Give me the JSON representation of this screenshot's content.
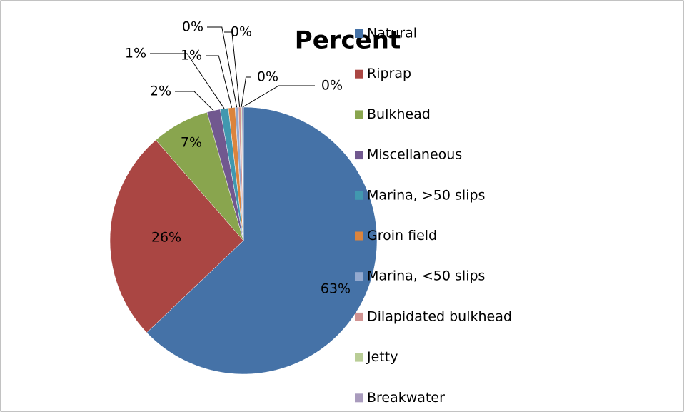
{
  "chart_data": {
    "type": "pie",
    "title": "Percent",
    "categories": [
      "Natural",
      "Riprap",
      "Bulkhead",
      "Miscellaneous",
      "Marina, >50 slips",
      "Groin field",
      "Marina, <50 slips",
      "Dilapidated bulkhead",
      "Jetty",
      "Breakwater"
    ],
    "values": [
      62.9,
      25.7,
      7.0,
      1.6,
      1.0,
      0.8,
      0.4,
      0.3,
      0.1,
      0.2
    ],
    "value_labels": [
      "63%",
      "26%",
      "7%",
      "2%",
      "1%",
      "1%",
      "0%",
      "0%",
      "0%",
      "0%"
    ],
    "colors": [
      "#4572a7",
      "#aa4643",
      "#89a54e",
      "#71588f",
      "#4198af",
      "#db843d",
      "#93a9cf",
      "#d19392",
      "#b9cd96",
      "#a99bbd"
    ],
    "legend": "right"
  }
}
